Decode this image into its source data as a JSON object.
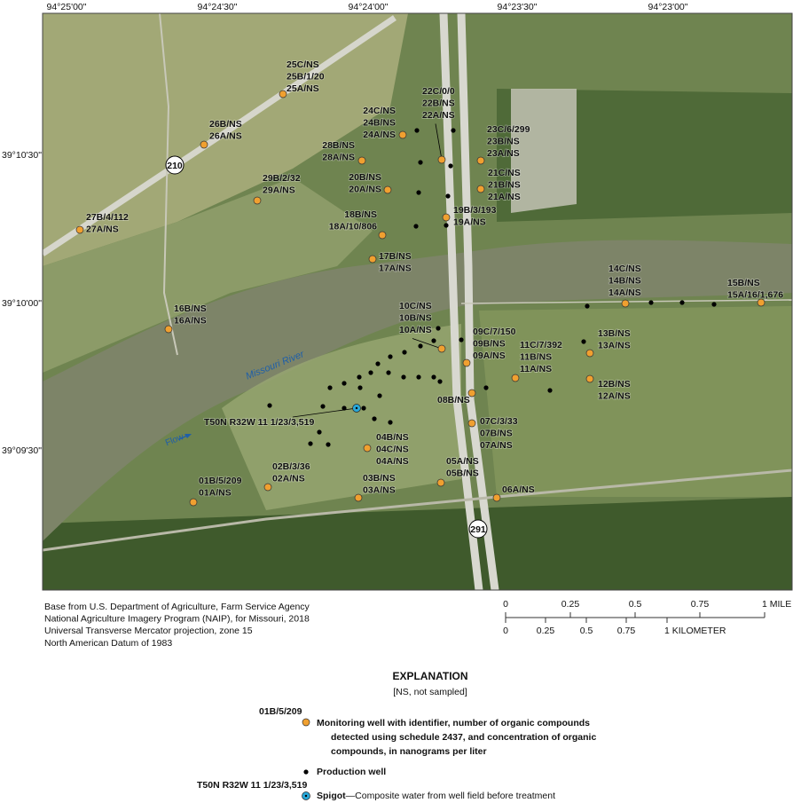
{
  "longitude_labels": [
    "94°25'00\"",
    "94°24'30\"",
    "94°24'00\"",
    "94°23'30\"",
    "94°23'00\""
  ],
  "latitude_labels": [
    "39°10'30\"",
    "39°10'00\"",
    "39°09'30\""
  ],
  "road_labels": [
    "210",
    "291"
  ],
  "river_label": "Missouri River",
  "flow_label": "Flow",
  "monitoring_wells": [
    {
      "lines": [
        "25C/NS",
        "25B/1/20",
        "25A/NS"
      ]
    },
    {
      "lines": [
        "26B/NS",
        "26A/NS"
      ]
    },
    {
      "lines": [
        "29B/2/32",
        "29A/NS"
      ]
    },
    {
      "lines": [
        "27B/4/112",
        "27A/NS"
      ]
    },
    {
      "lines": [
        "24C/NS",
        "24B/NS",
        "24A/NS"
      ]
    },
    {
      "lines": [
        "22C/0/0",
        "22B/NS",
        "22A/NS"
      ]
    },
    {
      "lines": [
        "28B/NS",
        "28A/NS"
      ]
    },
    {
      "lines": [
        "23C/6/299",
        "23B/NS",
        "23A/NS"
      ]
    },
    {
      "lines": [
        "20B/NS",
        "20A/NS"
      ]
    },
    {
      "lines": [
        "21C/NS",
        "21B/NS",
        "21A/NS"
      ]
    },
    {
      "lines": [
        "19B/3/193",
        "19A/NS"
      ]
    },
    {
      "lines": [
        "18B/NS",
        "18A/10/806"
      ]
    },
    {
      "lines": [
        "17B/NS",
        "17A/NS"
      ]
    },
    {
      "lines": [
        "14C/NS",
        "14B/NS",
        "14A/NS"
      ]
    },
    {
      "lines": [
        "15B/NS",
        "15A/16/1,676"
      ]
    },
    {
      "lines": [
        "16B/NS",
        "16A/NS"
      ]
    },
    {
      "lines": [
        "10C/NS",
        "10B/NS",
        "10A/NS"
      ]
    },
    {
      "lines": [
        "09C/7/150",
        "09B/NS",
        "09A/NS"
      ]
    },
    {
      "lines": [
        "13B/NS",
        "13A/NS"
      ]
    },
    {
      "lines": [
        "11C/7/392",
        "11B/NS",
        "11A/NS"
      ]
    },
    {
      "lines": [
        "12B/NS",
        "12A/NS"
      ]
    },
    {
      "lines": [
        "08B/NS"
      ]
    },
    {
      "lines": [
        "07C/3/33",
        "07B/NS",
        "07A/NS"
      ]
    },
    {
      "lines": [
        "04B/NS",
        "04C/NS",
        "04A/NS"
      ]
    },
    {
      "lines": [
        "05A/NS",
        "05B/NS"
      ]
    },
    {
      "lines": [
        "02B/3/36",
        "02A/NS"
      ]
    },
    {
      "lines": [
        "01B/5/209",
        "01A/NS"
      ]
    },
    {
      "lines": [
        "03B/NS",
        "03A/NS"
      ]
    },
    {
      "lines": [
        "06A/NS"
      ]
    }
  ],
  "spigot": {
    "label": "T50N R32W 11 1/23/3,519"
  },
  "credits": [
    "Base from U.S. Department of Agriculture, Farm Service Agency",
    "National Agriculture Imagery Program (NAIP), for Missouri, 2018",
    "Universal Transverse Mercator projection, zone 15",
    "North American Datum of 1983"
  ],
  "scale": {
    "mile_labels": [
      "0",
      "0.25",
      "0.5",
      "0.75",
      "1 MILE"
    ],
    "kilometer_labels": [
      "0",
      "0.25",
      "0.5",
      "0.75",
      "1 KILOMETER"
    ]
  },
  "explanation": {
    "title": "EXPLANATION",
    "subtitle": "[NS, not sampled]",
    "monitoring_example": "01B/5/209",
    "monitoring_text": [
      "Monitoring well with identifier, number of organic compounds",
      "detected using schedule 2437, and concentration of organic",
      "compounds, in nanograms per liter"
    ],
    "production_text": "Production well",
    "spigot_example": "T50N R32W 11 1/23/3,519",
    "spigot_term": "Spigot",
    "spigot_text": "—Composite water from well field before treatment"
  }
}
